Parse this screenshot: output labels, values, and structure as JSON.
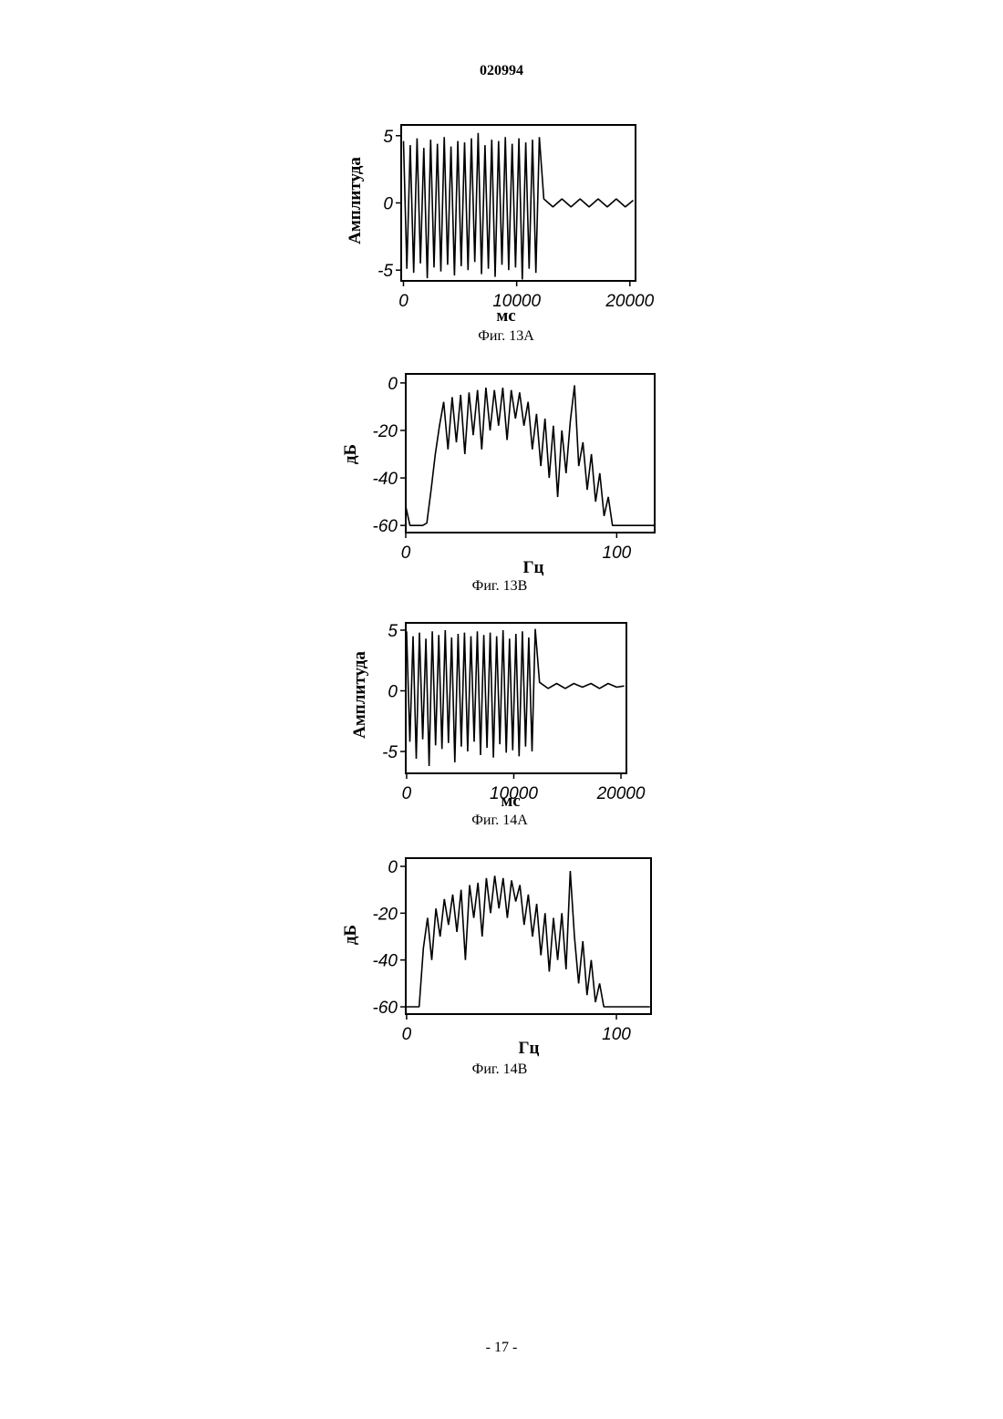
{
  "header": {
    "number": "020994"
  },
  "chart_data": [
    {
      "type": "line",
      "y_label": "Амплитуда",
      "x_label": "мс",
      "caption": "Фиг. 13А",
      "color": "#000000",
      "x": [
        0,
        300,
        600,
        900,
        1200,
        1500,
        1800,
        2100,
        2400,
        2700,
        3000,
        3300,
        3600,
        3900,
        4200,
        4500,
        4800,
        5100,
        5400,
        5700,
        6000,
        6300,
        6600,
        6900,
        7200,
        7500,
        7800,
        8100,
        8400,
        8700,
        9000,
        9300,
        9600,
        9900,
        10200,
        10500,
        10800,
        11100,
        11400,
        11700,
        12000,
        12400,
        13200,
        14000,
        14800,
        15600,
        16400,
        17200,
        18000,
        18800,
        19600,
        20300
      ],
      "values": [
        4.6,
        -4.9,
        4.3,
        -5.2,
        4.8,
        -4.5,
        4.1,
        -5.6,
        4.7,
        -4.8,
        4.4,
        -5.1,
        4.9,
        -4.6,
        4.2,
        -5.4,
        4.6,
        -4.7,
        4.5,
        -5.0,
        4.8,
        -4.4,
        5.2,
        -5.3,
        4.3,
        -4.9,
        4.7,
        -5.5,
        4.6,
        -4.6,
        4.9,
        -5.0,
        4.4,
        -4.8,
        4.8,
        -5.7,
        4.5,
        -4.9,
        4.7,
        -5.2,
        4.9,
        0.3,
        -0.3,
        0.3,
        -0.3,
        0.3,
        -0.3,
        0.3,
        -0.3,
        0.3,
        -0.3,
        0.2
      ],
      "xlim": [
        -200,
        20500
      ],
      "ylim": [
        -5.8,
        5.8
      ],
      "xticks": [
        0,
        10000,
        20000
      ],
      "yticks": [
        5,
        0,
        -5
      ]
    },
    {
      "type": "line",
      "y_label": "дБ",
      "x_label": "Гц",
      "caption": "Фиг. 13В",
      "color": "#000000",
      "x": [
        0,
        2,
        4,
        6,
        8,
        10,
        12,
        14,
        16,
        18,
        20,
        22,
        24,
        26,
        28,
        30,
        32,
        34,
        36,
        38,
        40,
        42,
        44,
        46,
        48,
        50,
        52,
        54,
        56,
        58,
        60,
        62,
        64,
        66,
        68,
        70,
        72,
        74,
        76,
        78,
        80,
        82,
        84,
        86,
        88,
        90,
        92,
        94,
        96,
        98,
        100,
        102,
        104,
        106,
        108,
        110,
        112,
        114,
        116,
        118
      ],
      "values": [
        -52,
        -60,
        -60,
        -60,
        -60,
        -59,
        -45,
        -30,
        -18,
        -8,
        -28,
        -6,
        -25,
        -5,
        -30,
        -4,
        -22,
        -3,
        -28,
        -2,
        -20,
        -3,
        -18,
        -2,
        -24,
        -3,
        -15,
        -4,
        -18,
        -8,
        -28,
        -13,
        -35,
        -15,
        -40,
        -18,
        -48,
        -20,
        -38,
        -16,
        -1,
        -35,
        -25,
        -45,
        -30,
        -50,
        -38,
        -56,
        -48,
        -60,
        -60,
        -60,
        -60,
        -60,
        -60,
        -60,
        -60,
        -60,
        -60,
        -60
      ],
      "xlim": [
        0,
        118
      ],
      "ylim": [
        -63,
        3.8
      ],
      "xticks": [
        0,
        100
      ],
      "yticks": [
        0,
        -20,
        -40,
        -60
      ]
    },
    {
      "type": "line",
      "y_label": "Амплитуда",
      "x_label": "мс",
      "caption": "Фиг. 14А",
      "color": "#000000",
      "x": [
        0,
        300,
        600,
        900,
        1200,
        1500,
        1800,
        2100,
        2400,
        2700,
        3000,
        3300,
        3600,
        3900,
        4200,
        4500,
        4800,
        5100,
        5400,
        5700,
        6000,
        6300,
        6600,
        6900,
        7200,
        7500,
        7800,
        8100,
        8400,
        8700,
        9000,
        9300,
        9600,
        9900,
        10200,
        10500,
        10800,
        11100,
        11400,
        11700,
        12000,
        12400,
        13200,
        14000,
        14800,
        15600,
        16400,
        17200,
        18000,
        18800,
        19600,
        20300
      ],
      "values": [
        4.9,
        -4.2,
        4.5,
        -5.6,
        4.8,
        -4.0,
        4.3,
        -6.2,
        4.9,
        -4.5,
        4.6,
        -4.8,
        5.0,
        -4.3,
        4.4,
        -5.9,
        4.7,
        -4.6,
        4.8,
        -5.0,
        4.5,
        -4.2,
        4.9,
        -5.3,
        4.6,
        -4.7,
        4.8,
        -5.5,
        4.5,
        -4.4,
        5.0,
        -5.1,
        4.3,
        -4.9,
        4.7,
        -5.4,
        4.9,
        -4.6,
        4.4,
        -5.0,
        5.1,
        0.7,
        0.2,
        0.6,
        0.2,
        0.6,
        0.3,
        0.6,
        0.2,
        0.6,
        0.3,
        0.4
      ],
      "xlim": [
        -80,
        20510
      ],
      "ylim": [
        -6.8,
        5.6
      ],
      "xticks": [
        0,
        10000,
        20000
      ],
      "yticks": [
        5,
        0,
        -5
      ]
    },
    {
      "type": "line",
      "y_label": "дБ",
      "x_label": "Гц",
      "caption": "Фиг. 14В",
      "color": "#000000",
      "x": [
        0,
        2,
        4,
        6,
        8,
        10,
        12,
        14,
        16,
        18,
        20,
        22,
        24,
        26,
        28,
        30,
        32,
        34,
        36,
        38,
        40,
        42,
        44,
        46,
        48,
        50,
        52,
        54,
        56,
        58,
        60,
        62,
        64,
        66,
        68,
        70,
        72,
        74,
        76,
        78,
        80,
        82,
        84,
        86,
        88,
        90,
        92,
        94,
        96,
        98,
        100,
        102,
        104,
        106,
        108,
        110,
        112,
        114,
        116
      ],
      "values": [
        -60,
        -60,
        -60,
        -60,
        -35,
        -22,
        -40,
        -18,
        -30,
        -14,
        -25,
        -12,
        -28,
        -10,
        -40,
        -8,
        -22,
        -7,
        -30,
        -5,
        -20,
        -4,
        -18,
        -5,
        -22,
        -6,
        -15,
        -8,
        -25,
        -12,
        -30,
        -16,
        -38,
        -20,
        -45,
        -22,
        -40,
        -20,
        -44,
        -2,
        -30,
        -50,
        -32,
        -55,
        -40,
        -58,
        -50,
        -60,
        -60,
        -60,
        -60,
        -60,
        -60,
        -60,
        -60,
        -60,
        -60,
        -60,
        -60
      ],
      "xlim": [
        -0.4,
        116.5
      ],
      "ylim": [
        -63.1,
        3.5
      ],
      "xticks": [
        0,
        100
      ],
      "yticks": [
        0,
        -20,
        -40,
        -60
      ]
    }
  ],
  "footer": {
    "page": "- 17 -"
  }
}
